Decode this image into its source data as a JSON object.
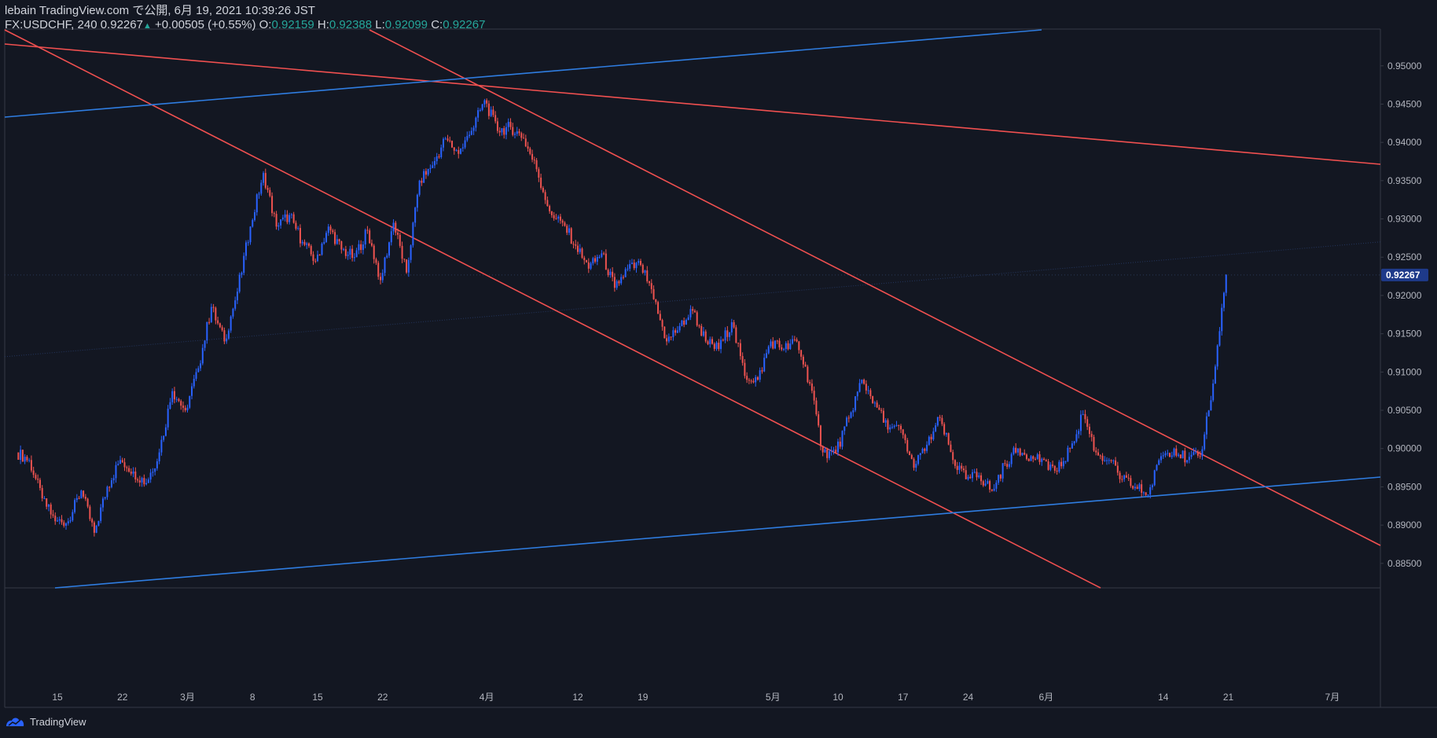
{
  "header": {
    "published": "lebain TradingView.com で公開, 6月 19, 2021 10:39:26 JST",
    "symbol": "FX:USDCHF, 240",
    "last": "0.92267",
    "change": "+0.00505 (+0.55%)",
    "o_label": "O:",
    "o": "0.92159",
    "h_label": "H:",
    "h": "0.92388",
    "l_label": "L:",
    "l": "0.92099",
    "c_label": "C:",
    "c": "0.92267"
  },
  "footer": {
    "brand": "TradingView"
  },
  "colors": {
    "bg": "#131722",
    "up": "#2962ff",
    "down": "#ef5350",
    "trend_red": "#f05050",
    "trend_blue": "#2f7de1",
    "grid_border": "#363a45"
  },
  "chart_data": {
    "type": "line",
    "title": "",
    "xlabel": "",
    "ylabel": "",
    "ylim": [
      0.8818,
      0.9548
    ],
    "x_ticks": [
      "15",
      "22",
      "3月",
      "8",
      "15",
      "22",
      "4月",
      "12",
      "19",
      "5月",
      "10",
      "17",
      "24",
      "6月",
      "14",
      "21",
      "7月"
    ],
    "y_ticks": [
      "0.95000",
      "0.94500",
      "0.94000",
      "0.93500",
      "0.93000",
      "0.92500",
      "0.92000",
      "0.91500",
      "0.91000",
      "0.90500",
      "0.90000",
      "0.89500",
      "0.89000",
      "0.88500"
    ],
    "last_price": "0.92267",
    "series": [
      {
        "x": [
          "02-10",
          "02-11",
          "02-12",
          "02-15",
          "02-16",
          "02-17",
          "02-18",
          "02-19",
          "02-22",
          "02-23",
          "02-24",
          "02-25",
          "02-26",
          "03-01",
          "03-02",
          "03-03",
          "03-04",
          "03-05",
          "03-08",
          "03-09",
          "03-10",
          "03-11",
          "03-12",
          "03-15",
          "03-16",
          "03-17",
          "03-18",
          "03-19",
          "03-22",
          "03-23",
          "03-24",
          "03-25",
          "03-26",
          "03-29",
          "03-30",
          "03-31",
          "04-01",
          "04-02",
          "04-05",
          "04-06",
          "04-07",
          "04-08",
          "04-09",
          "04-12",
          "04-13",
          "04-14",
          "04-15",
          "04-16",
          "04-19",
          "04-20",
          "04-21",
          "04-22",
          "04-23",
          "04-26",
          "04-27",
          "04-28",
          "04-29",
          "04-30",
          "05-03",
          "05-04",
          "05-05",
          "05-06",
          "05-07",
          "05-10",
          "05-11",
          "05-12",
          "05-13",
          "05-14",
          "05-17",
          "05-18",
          "05-19",
          "05-20",
          "05-21",
          "05-24",
          "05-25",
          "05-26",
          "05-27",
          "05-28",
          "05-31",
          "06-01",
          "06-02",
          "06-03",
          "06-04",
          "06-07",
          "06-08",
          "06-09",
          "06-10",
          "06-11",
          "06-14",
          "06-15",
          "06-16",
          "06-17",
          "06-18"
        ],
        "values": [
          0.8985,
          0.8935,
          0.8905,
          0.8905,
          0.8945,
          0.889,
          0.895,
          0.8985,
          0.897,
          0.8955,
          0.8995,
          0.9075,
          0.905,
          0.9105,
          0.9185,
          0.914,
          0.9205,
          0.929,
          0.936,
          0.929,
          0.9305,
          0.927,
          0.9245,
          0.929,
          0.926,
          0.925,
          0.9285,
          0.922,
          0.9295,
          0.923,
          0.935,
          0.937,
          0.9405,
          0.9385,
          0.9415,
          0.9455,
          0.9415,
          0.942,
          0.9405,
          0.9365,
          0.931,
          0.9295,
          0.9265,
          0.9235,
          0.9255,
          0.921,
          0.9235,
          0.924,
          0.9195,
          0.914,
          0.916,
          0.918,
          0.914,
          0.913,
          0.9165,
          0.9095,
          0.909,
          0.914,
          0.913,
          0.914,
          0.9085,
          0.8995,
          0.8995,
          0.904,
          0.909,
          0.906,
          0.9025,
          0.9025,
          0.8975,
          0.9005,
          0.904,
          0.8985,
          0.896,
          0.8965,
          0.8945,
          0.898,
          0.9,
          0.899,
          0.8985,
          0.897,
          0.9,
          0.9045,
          0.8995,
          0.8985,
          0.896,
          0.895,
          0.894,
          0.899,
          0.9,
          0.8985,
          0.899,
          0.9085,
          0.9227
        ]
      }
    ]
  }
}
